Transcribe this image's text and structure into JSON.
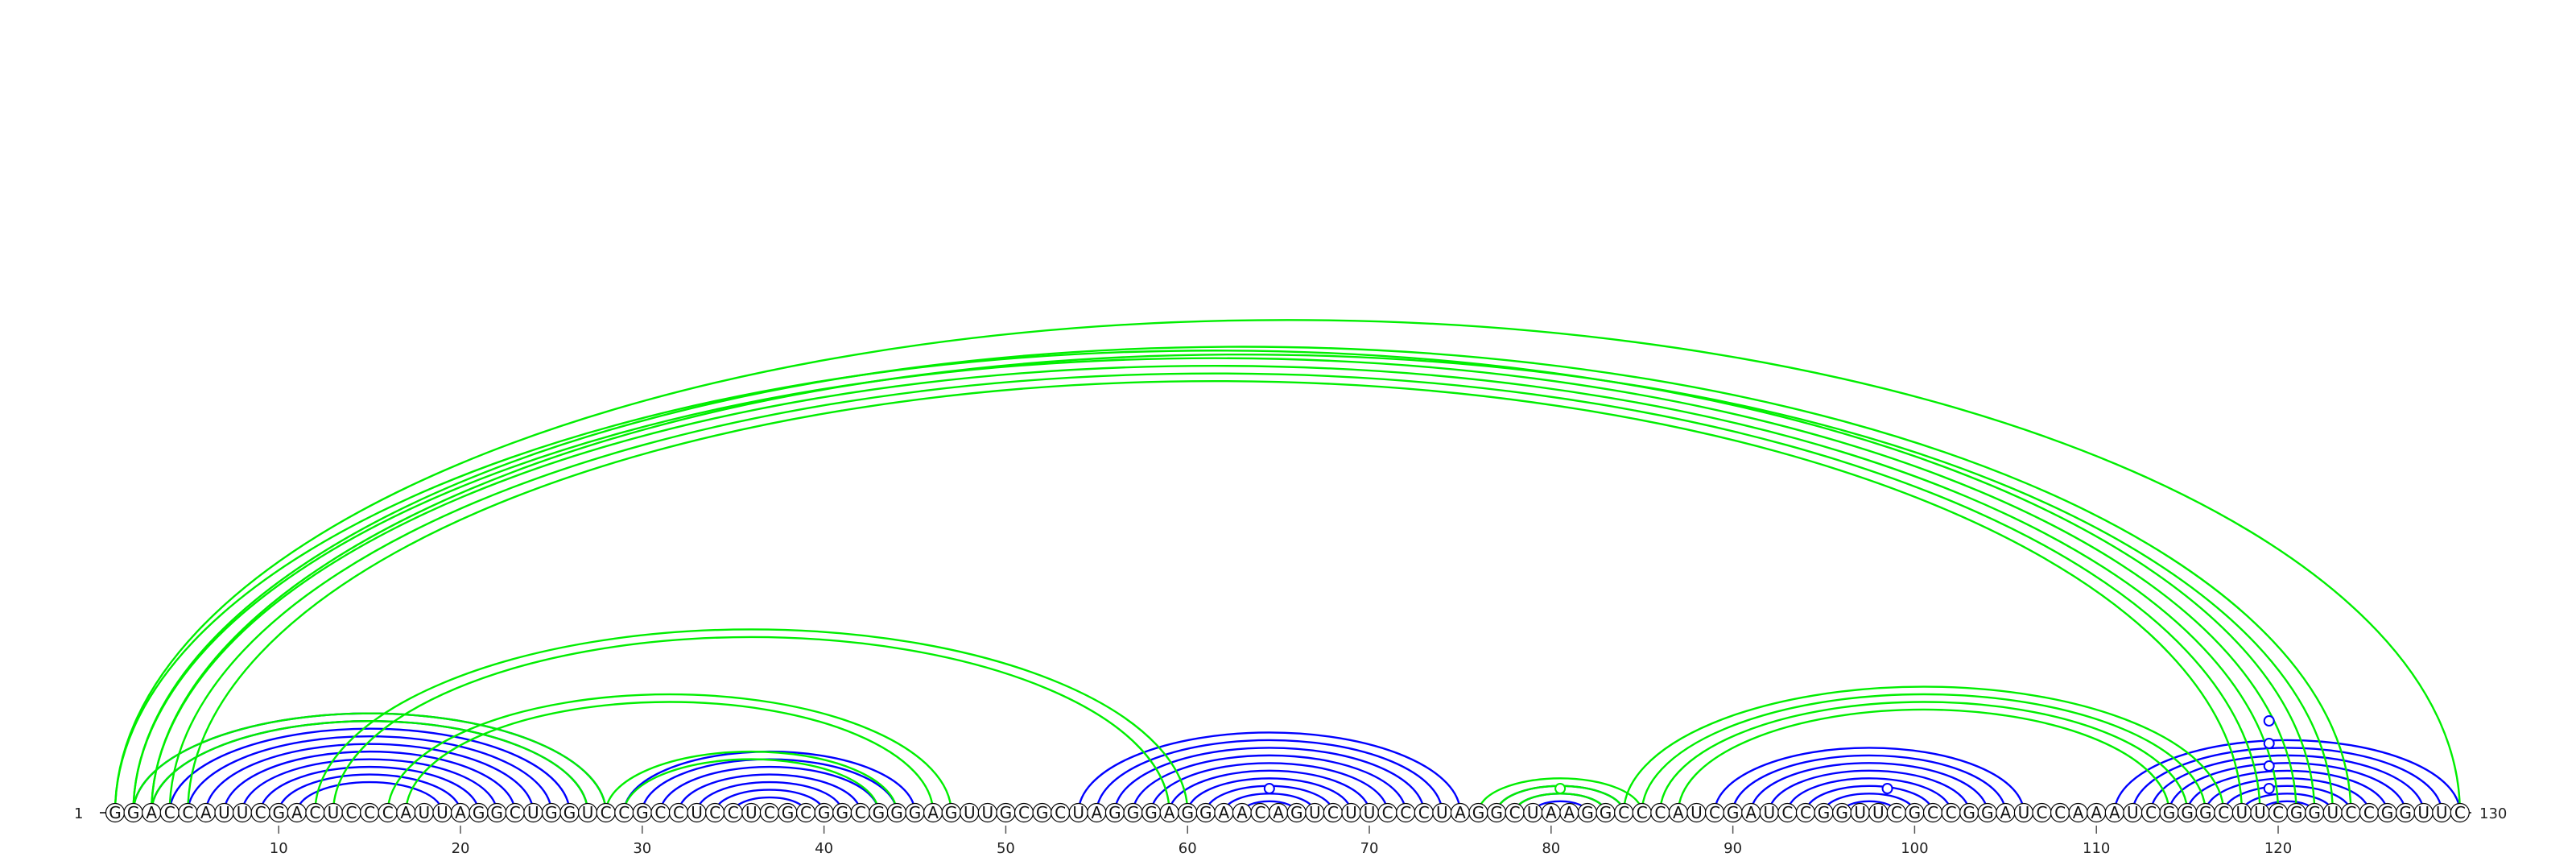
{
  "sequence": "GGACCAUUCGACUCCCAUUAGGCUGGUCCGCCUCCUCGCGGCGGGAGUUGCGCUAGGGAGGAACAGUCUUCCCUAGGCUAAGGCCCAUCGAUCCGGUUCGCCGGAUCCAAAUCGGGCUUCGGUCCGGUUC",
  "start_label": "1",
  "end_label": "130",
  "ticks": [
    {
      "pos": 10,
      "label": "10"
    },
    {
      "pos": 20,
      "label": "20"
    },
    {
      "pos": 30,
      "label": "30"
    },
    {
      "pos": 40,
      "label": "40"
    },
    {
      "pos": 50,
      "label": "50"
    },
    {
      "pos": 60,
      "label": "60"
    },
    {
      "pos": 70,
      "label": "70"
    },
    {
      "pos": 80,
      "label": "80"
    },
    {
      "pos": 90,
      "label": "90"
    },
    {
      "pos": 100,
      "label": "100"
    },
    {
      "pos": 110,
      "label": "110"
    },
    {
      "pos": 120,
      "label": "120"
    }
  ],
  "colors": {
    "reference": "#0000ff",
    "prediction": "#00ee00"
  },
  "reference_pairs": [
    [
      2,
      28
    ],
    [
      3,
      27
    ],
    [
      4,
      26
    ],
    [
      5,
      25
    ],
    [
      6,
      24
    ],
    [
      7,
      23
    ],
    [
      8,
      22
    ],
    [
      9,
      21
    ],
    [
      10,
      20
    ],
    [
      11,
      19
    ],
    [
      29,
      45
    ],
    [
      30,
      44
    ],
    [
      31,
      43
    ],
    [
      32,
      42
    ],
    [
      33,
      41
    ],
    [
      34,
      40
    ],
    [
      35,
      39
    ],
    [
      54,
      75
    ],
    [
      55,
      74
    ],
    [
      56,
      73
    ],
    [
      57,
      72
    ],
    [
      58,
      71
    ],
    [
      59,
      70
    ],
    [
      60,
      69
    ],
    [
      61,
      68
    ],
    [
      62,
      67
    ],
    [
      63,
      66
    ],
    [
      77,
      84
    ],
    [
      78,
      83
    ],
    [
      79,
      82
    ],
    [
      89,
      106
    ],
    [
      90,
      105
    ],
    [
      91,
      104
    ],
    [
      92,
      103
    ],
    [
      93,
      102
    ],
    [
      94,
      101
    ],
    [
      95,
      100
    ],
    [
      96,
      99
    ],
    [
      111,
      130
    ],
    [
      112,
      129
    ],
    [
      113,
      128
    ],
    [
      114,
      127
    ],
    [
      115,
      126
    ],
    [
      116,
      125
    ],
    [
      117,
      124
    ],
    [
      118,
      123
    ],
    [
      119,
      122
    ]
  ],
  "prediction_pairs": [
    [
      1,
      122
    ],
    [
      2,
      121
    ],
    [
      3,
      120
    ],
    [
      4,
      119
    ],
    [
      5,
      118
    ],
    [
      1,
      130
    ],
    [
      2,
      124
    ],
    [
      3,
      123
    ],
    [
      2,
      28
    ],
    [
      3,
      27
    ],
    [
      12,
      60
    ],
    [
      13,
      59
    ],
    [
      16,
      47
    ],
    [
      17,
      46
    ],
    [
      28,
      44
    ],
    [
      29,
      43
    ],
    [
      76,
      85
    ],
    [
      77,
      84
    ],
    [
      78,
      83
    ],
    [
      84,
      117
    ],
    [
      85,
      116
    ],
    [
      86,
      115
    ],
    [
      87,
      114
    ]
  ],
  "gu_markers": [
    {
      "pos": 64.5,
      "level": 1,
      "color_key": "reference"
    },
    {
      "pos": 80.5,
      "level": 1,
      "color_key": "prediction"
    },
    {
      "pos": 98.5,
      "level": 1,
      "color_key": "reference"
    },
    {
      "pos": 119.5,
      "level": 1,
      "color_key": "reference"
    },
    {
      "pos": 119.5,
      "level": 2,
      "color_key": "reference"
    },
    {
      "pos": 119.5,
      "level": 3,
      "color_key": "reference"
    },
    {
      "pos": 119.5,
      "level": 4,
      "color_key": "reference"
    }
  ]
}
